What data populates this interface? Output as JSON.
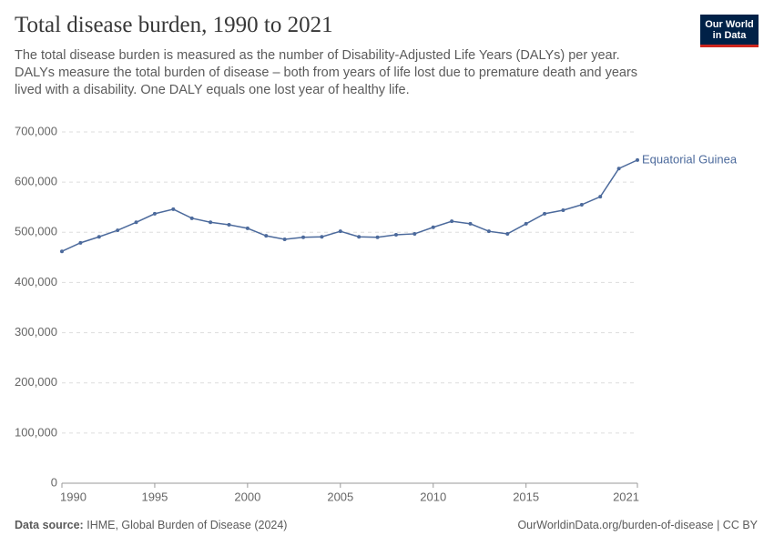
{
  "chart_data": {
    "type": "line",
    "title": "Total disease burden, 1990 to 2021",
    "subtitle": "The total disease burden is measured as the number of Disability-Adjusted Life Years (DALYs) per year. DALYs measure the total burden of disease – both from years of life lost due to premature death and years lived with a disability. One DALY equals one lost year of healthy life.",
    "logo": [
      "Our World",
      "in Data"
    ],
    "x": [
      1990,
      1991,
      1992,
      1993,
      1994,
      1995,
      1996,
      1997,
      1998,
      1999,
      2000,
      2001,
      2002,
      2003,
      2004,
      2005,
      2006,
      2007,
      2008,
      2009,
      2010,
      2011,
      2012,
      2013,
      2014,
      2015,
      2016,
      2017,
      2018,
      2019,
      2020,
      2021
    ],
    "series": [
      {
        "name": "Equatorial Guinea",
        "color": "#4c6a9c",
        "values": [
          462000,
          479000,
          491000,
          504000,
          520000,
          537000,
          546000,
          528000,
          520000,
          515000,
          508000,
          493000,
          486000,
          490000,
          491000,
          502000,
          491000,
          490000,
          495000,
          497000,
          510000,
          522000,
          517000,
          502000,
          497000,
          517000,
          537000,
          544000,
          555000,
          571000,
          627000,
          644000
        ]
      }
    ],
    "xlim": [
      1990,
      2021
    ],
    "xticks": [
      1990,
      1995,
      2000,
      2005,
      2010,
      2015,
      2021
    ],
    "ylim": [
      0,
      700000
    ],
    "yticks": [
      0,
      {
        "value": 100000,
        "label": "100,000"
      },
      {
        "value": 200000,
        "label": "200,000"
      },
      {
        "value": 300000,
        "label": "300,000"
      },
      {
        "value": 400000,
        "label": "400,000"
      },
      {
        "value": 500000,
        "label": "500,000"
      },
      {
        "value": 600000,
        "label": "600,000"
      },
      {
        "value": 700000,
        "label": "700,000"
      }
    ],
    "grid": true,
    "source_label": "Data source:",
    "source": "IHME, Global Burden of Disease (2024)",
    "url": "OurWorldinData.org/burden-of-disease | CC BY"
  }
}
